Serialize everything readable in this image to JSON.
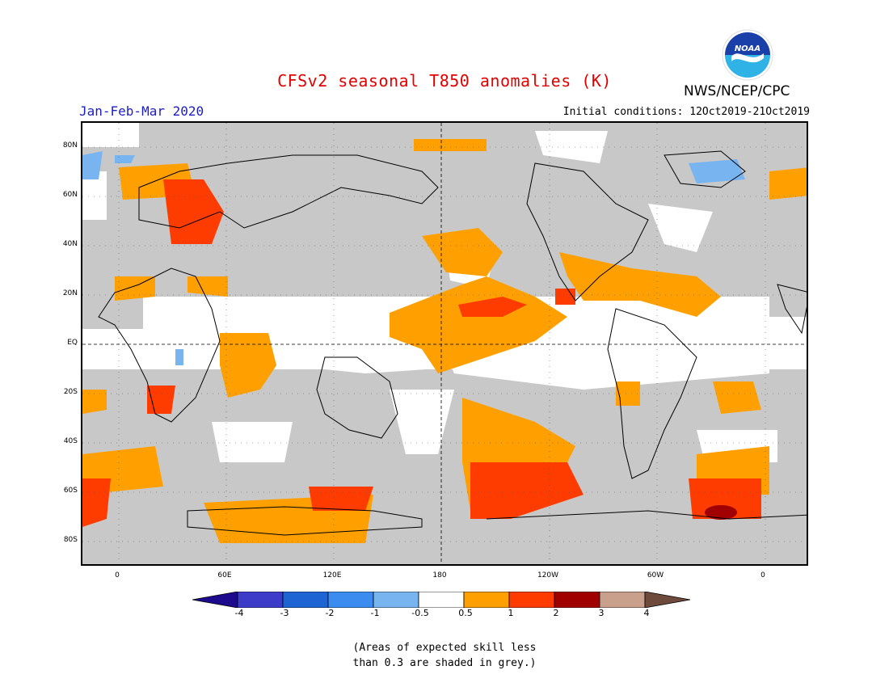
{
  "title": "CFSv2 seasonal T850 anomalies (K)",
  "season": "Jan-Feb-Mar 2020",
  "initial_conditions": "Initial conditions: 12Oct2019-21Oct2019",
  "organization": "NWS/NCEP/CPC",
  "logo_text": "NOAA",
  "map": {
    "lat_labels": [
      "80N",
      "60N",
      "40N",
      "20N",
      "EQ",
      "20S",
      "40S",
      "60S",
      "80S"
    ],
    "lon_labels": [
      "0",
      "60E",
      "120E",
      "180",
      "120W",
      "60W",
      "0"
    ],
    "skill_mask_color": "#c8c8c8"
  },
  "legend": {
    "ticks": [
      "-4",
      "-3",
      "-2",
      "-1",
      "-0.5",
      "0.5",
      "1",
      "2",
      "3",
      "4"
    ],
    "colors": [
      "#1e0a8c",
      "#3c3cc8",
      "#1e64d2",
      "#3c8cf0",
      "#78b4f0",
      "#ffffff",
      "#ffa000",
      "#ff3c00",
      "#a00000",
      "#c8a08c",
      "#6e4a3c"
    ]
  },
  "note_line1": "(Areas of expected skill less",
  "note_line2": "than 0.3 are shaded in grey.)"
}
